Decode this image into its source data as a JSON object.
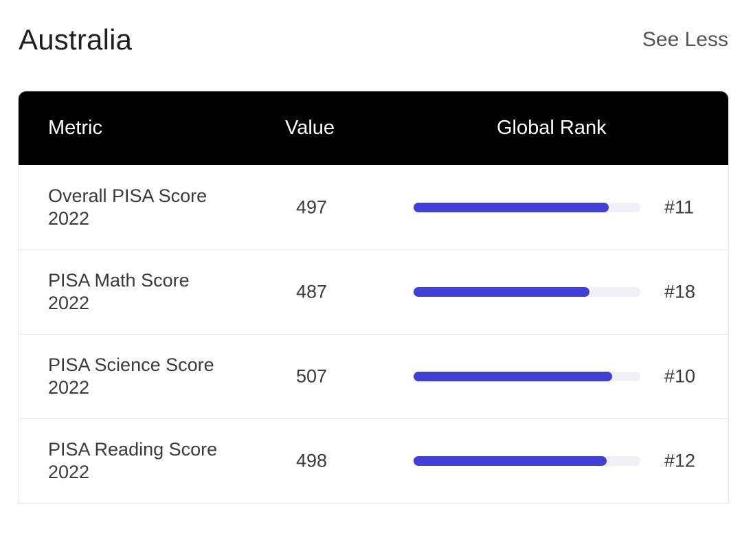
{
  "header": {
    "title": "Australia",
    "toggle_label": "See Less"
  },
  "table": {
    "columns": {
      "metric": "Metric",
      "value": "Value",
      "rank": "Global Rank"
    },
    "rows": [
      {
        "metric": "Overall PISA Score 2022",
        "value": "497",
        "rank": "#11",
        "rank_bar_fraction": 0.86
      },
      {
        "metric": "PISA Math Score 2022",
        "value": "487",
        "rank": "#18",
        "rank_bar_fraction": 0.775
      },
      {
        "metric": "PISA Science Score 2022",
        "value": "507",
        "rank": "#10",
        "rank_bar_fraction": 0.875
      },
      {
        "metric": "PISA Reading Score 2022",
        "value": "498",
        "rank": "#12",
        "rank_bar_fraction": 0.85
      }
    ]
  },
  "colors": {
    "bar_fill": "#4040d6",
    "bar_track": "#f0f0f6",
    "header_background": "#000000"
  }
}
